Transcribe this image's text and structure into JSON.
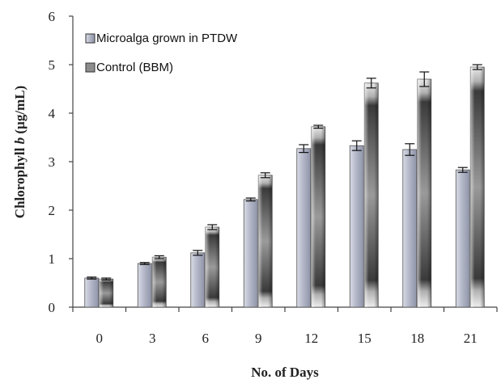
{
  "chart_data": {
    "type": "bar",
    "title": "",
    "xlabel": "No. of Days",
    "ylabel_prefix": "Chlorophyll ",
    "ylabel_italic": "b",
    "ylabel_suffix": " (µg/mL)",
    "categories": [
      "0",
      "3",
      "6",
      "9",
      "12",
      "15",
      "18",
      "21"
    ],
    "ylim": [
      0,
      6
    ],
    "yticks": [
      0,
      1,
      2,
      3,
      4,
      5,
      6
    ],
    "grid": false,
    "legend_position": "top-left",
    "series": [
      {
        "name": "Microalga grown in PTDW",
        "values": [
          0.6,
          0.9,
          1.12,
          2.22,
          3.27,
          3.33,
          3.25,
          2.83
        ],
        "errors": [
          0.02,
          0.02,
          0.05,
          0.03,
          0.08,
          0.1,
          0.12,
          0.05
        ],
        "color": "#b8bccb"
      },
      {
        "name": "Control (BBM)",
        "values": [
          0.58,
          1.03,
          1.65,
          2.72,
          3.72,
          4.62,
          4.7,
          4.95
        ],
        "errors": [
          0.02,
          0.03,
          0.05,
          0.05,
          0.03,
          0.1,
          0.15,
          0.05
        ],
        "color": "#8c8c8c"
      }
    ]
  }
}
